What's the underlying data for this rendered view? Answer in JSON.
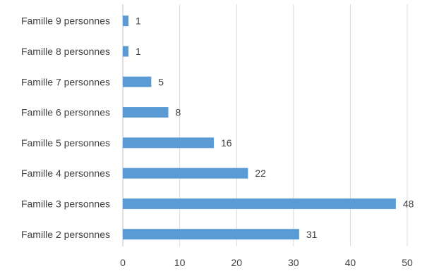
{
  "chart_data": {
    "type": "bar",
    "orientation": "horizontal",
    "categories": [
      "Famille 9 personnes",
      "Famille 8 personnes",
      "Famille 7 personnes",
      "Famille 6 personnes",
      "Famille 5 personnes",
      "Famille 4 personnes",
      "Famille 3 personnes",
      "Famille 2 personnes"
    ],
    "values": [
      1,
      1,
      5,
      8,
      16,
      22,
      48,
      31
    ],
    "xlim": [
      0,
      50
    ],
    "x_ticks": [
      0,
      10,
      20,
      30,
      40,
      50
    ],
    "grid": "vertical",
    "show_data_labels": true,
    "title": "",
    "xlabel": "",
    "ylabel": "",
    "colors": {
      "bar": "#5b9bd5"
    }
  }
}
